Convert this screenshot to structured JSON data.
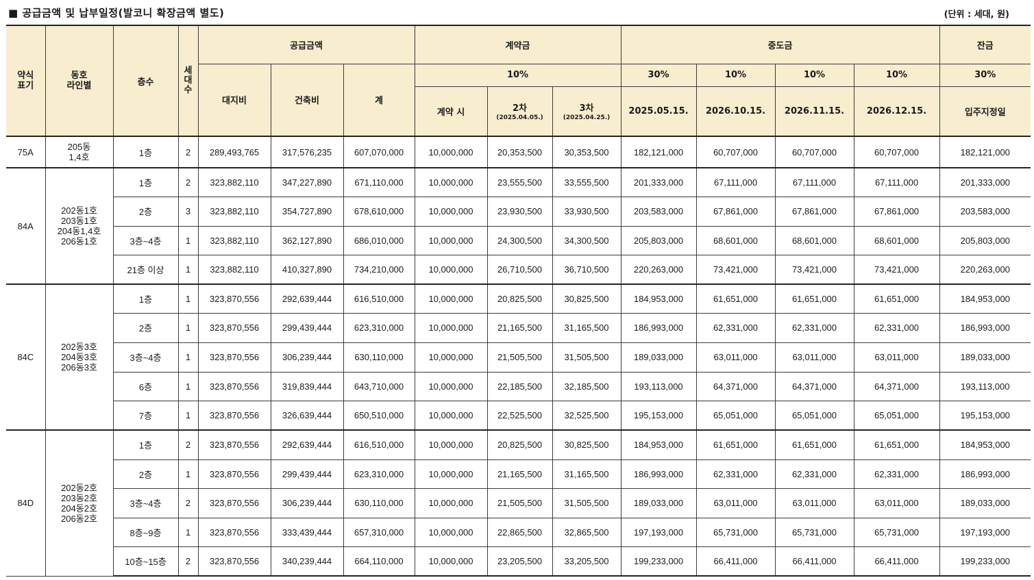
{
  "title": "■ 공급금액 및 납부일정(발코니 확장금액 별도)",
  "unit": "(단위 : 세대, 원)",
  "headers": {
    "type": "약식\n표기",
    "line": "동호\n라인별",
    "floor": "층수",
    "units": "세대수",
    "supply": "공급금액",
    "land": "대지비",
    "building": "건축비",
    "total": "계",
    "deposit": "계약금",
    "deposit_pct": "10%",
    "dep1": "계약 시",
    "dep2": "2차",
    "dep2_date": "(2025.04.05.)",
    "dep3": "3차",
    "dep3_date": "(2025.04.25.)",
    "middle": "중도금",
    "m1_pct": "30%",
    "m2_pct": "10%",
    "m3_pct": "10%",
    "m4_pct": "10%",
    "m1_date": "2025.05.15.",
    "m2_date": "2026.10.15.",
    "m3_date": "2026.11.15.",
    "m4_date": "2026.12.15.",
    "balance": "잔금",
    "bal_pct": "30%",
    "bal_date": "입주지정일"
  },
  "groups": [
    {
      "type": "75A",
      "lines": "205동\n1,4호",
      "rows": [
        {
          "floor": "1층",
          "units": "2",
          "land": "289,493,765",
          "building": "317,576,235",
          "total": "607,070,000",
          "d1": "10,000,000",
          "d2": "20,353,500",
          "d3": "30,353,500",
          "m1": "182,121,000",
          "m2": "60,707,000",
          "m3": "60,707,000",
          "m4": "60,707,000",
          "bal": "182,121,000"
        }
      ]
    },
    {
      "type": "84A",
      "lines": "202동1호\n203동1호\n204동1,4호\n206동1호",
      "rows": [
        {
          "floor": "1층",
          "units": "2",
          "land": "323,882,110",
          "building": "347,227,890",
          "total": "671,110,000",
          "d1": "10,000,000",
          "d2": "23,555,500",
          "d3": "33,555,500",
          "m1": "201,333,000",
          "m2": "67,111,000",
          "m3": "67,111,000",
          "m4": "67,111,000",
          "bal": "201,333,000"
        },
        {
          "floor": "2층",
          "units": "3",
          "land": "323,882,110",
          "building": "354,727,890",
          "total": "678,610,000",
          "d1": "10,000,000",
          "d2": "23,930,500",
          "d3": "33,930,500",
          "m1": "203,583,000",
          "m2": "67,861,000",
          "m3": "67,861,000",
          "m4": "67,861,000",
          "bal": "203,583,000"
        },
        {
          "floor": "3층~4층",
          "units": "1",
          "land": "323,882,110",
          "building": "362,127,890",
          "total": "686,010,000",
          "d1": "10,000,000",
          "d2": "24,300,500",
          "d3": "34,300,500",
          "m1": "205,803,000",
          "m2": "68,601,000",
          "m3": "68,601,000",
          "m4": "68,601,000",
          "bal": "205,803,000"
        },
        {
          "floor": "21층 이상",
          "units": "1",
          "land": "323,882,110",
          "building": "410,327,890",
          "total": "734,210,000",
          "d1": "10,000,000",
          "d2": "26,710,500",
          "d3": "36,710,500",
          "m1": "220,263,000",
          "m2": "73,421,000",
          "m3": "73,421,000",
          "m4": "73,421,000",
          "bal": "220,263,000"
        }
      ]
    },
    {
      "type": "84C",
      "lines": "202동3호\n204동3호\n206동3호",
      "rows": [
        {
          "floor": "1층",
          "units": "1",
          "land": "323,870,556",
          "building": "292,639,444",
          "total": "616,510,000",
          "d1": "10,000,000",
          "d2": "20,825,500",
          "d3": "30,825,500",
          "m1": "184,953,000",
          "m2": "61,651,000",
          "m3": "61,651,000",
          "m4": "61,651,000",
          "bal": "184,953,000"
        },
        {
          "floor": "2층",
          "units": "1",
          "land": "323,870,556",
          "building": "299,439,444",
          "total": "623,310,000",
          "d1": "10,000,000",
          "d2": "21,165,500",
          "d3": "31,165,500",
          "m1": "186,993,000",
          "m2": "62,331,000",
          "m3": "62,331,000",
          "m4": "62,331,000",
          "bal": "186,993,000"
        },
        {
          "floor": "3층~4층",
          "units": "1",
          "land": "323,870,556",
          "building": "306,239,444",
          "total": "630,110,000",
          "d1": "10,000,000",
          "d2": "21,505,500",
          "d3": "31,505,500",
          "m1": "189,033,000",
          "m2": "63,011,000",
          "m3": "63,011,000",
          "m4": "63,011,000",
          "bal": "189,033,000"
        },
        {
          "floor": "6층",
          "units": "1",
          "land": "323,870,556",
          "building": "319,839,444",
          "total": "643,710,000",
          "d1": "10,000,000",
          "d2": "22,185,500",
          "d3": "32,185,500",
          "m1": "193,113,000",
          "m2": "64,371,000",
          "m3": "64,371,000",
          "m4": "64,371,000",
          "bal": "193,113,000"
        },
        {
          "floor": "7층",
          "units": "1",
          "land": "323,870,556",
          "building": "326,639,444",
          "total": "650,510,000",
          "d1": "10,000,000",
          "d2": "22,525,500",
          "d3": "32,525,500",
          "m1": "195,153,000",
          "m2": "65,051,000",
          "m3": "65,051,000",
          "m4": "65,051,000",
          "bal": "195,153,000"
        }
      ]
    },
    {
      "type": "84D",
      "lines": "202동2호\n203동2호\n204동2호\n206동2호",
      "rows": [
        {
          "floor": "1층",
          "units": "2",
          "land": "323,870,556",
          "building": "292,639,444",
          "total": "616,510,000",
          "d1": "10,000,000",
          "d2": "20,825,500",
          "d3": "30,825,500",
          "m1": "184,953,000",
          "m2": "61,651,000",
          "m3": "61,651,000",
          "m4": "61,651,000",
          "bal": "184,953,000"
        },
        {
          "floor": "2층",
          "units": "1",
          "land": "323,870,556",
          "building": "299,439,444",
          "total": "623,310,000",
          "d1": "10,000,000",
          "d2": "21,165,500",
          "d3": "31,165,500",
          "m1": "186,993,000",
          "m2": "62,331,000",
          "m3": "62,331,000",
          "m4": "62,331,000",
          "bal": "186,993,000"
        },
        {
          "floor": "3층~4층",
          "units": "2",
          "land": "323,870,556",
          "building": "306,239,444",
          "total": "630,110,000",
          "d1": "10,000,000",
          "d2": "21,505,500",
          "d3": "31,505,500",
          "m1": "189,033,000",
          "m2": "63,011,000",
          "m3": "63,011,000",
          "m4": "63,011,000",
          "bal": "189,033,000"
        },
        {
          "floor": "8층~9층",
          "units": "1",
          "land": "323,870,556",
          "building": "333,439,444",
          "total": "657,310,000",
          "d1": "10,000,000",
          "d2": "22,865,500",
          "d3": "32,865,500",
          "m1": "197,193,000",
          "m2": "65,731,000",
          "m3": "65,731,000",
          "m4": "65,731,000",
          "bal": "197,193,000"
        },
        {
          "floor": "10층~15층",
          "units": "2",
          "land": "323,870,556",
          "building": "340,239,444",
          "total": "664,110,000",
          "d1": "10,000,000",
          "d2": "23,205,500",
          "d3": "33,205,500",
          "m1": "199,233,000",
          "m2": "66,411,000",
          "m3": "66,411,000",
          "m4": "66,411,000",
          "bal": "199,233,000"
        }
      ]
    }
  ]
}
